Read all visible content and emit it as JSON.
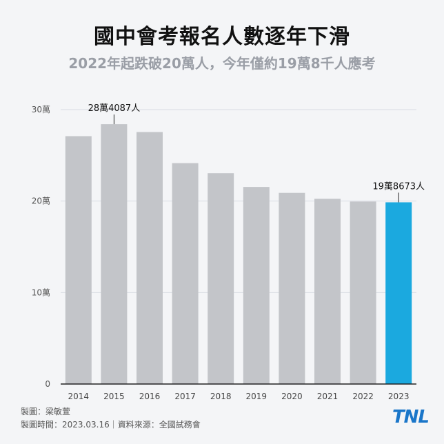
{
  "title": "國中會考報名人數逐年下滑",
  "subtitle": "2022年起跌破20萬人，今年僅約19萬8千人應考",
  "credit": "製圖：梁敏萱",
  "date_source": "製圖時間：2023.03.16｜資料來源：全國試務會",
  "logo": "TNL",
  "chart_data": {
    "type": "bar",
    "categories": [
      "2014",
      "2015",
      "2016",
      "2017",
      "2018",
      "2019",
      "2020",
      "2021",
      "2022",
      "2023"
    ],
    "values": [
      271000,
      284087,
      275500,
      241500,
      230500,
      215500,
      209000,
      202500,
      199500,
      198673
    ],
    "ylim": [
      0,
      300000
    ],
    "yticks": [
      0,
      100000,
      200000,
      300000
    ],
    "ytick_labels": [
      "0",
      "10萬",
      "20萬",
      "30萬"
    ],
    "grid": true,
    "colors": {
      "default": "#c3c5c9",
      "highlight": "#1ba9df"
    },
    "highlight_index": 9,
    "annotations": [
      {
        "index": 1,
        "text": "28萬4087人"
      },
      {
        "index": 9,
        "text": "19萬8673人"
      }
    ]
  }
}
